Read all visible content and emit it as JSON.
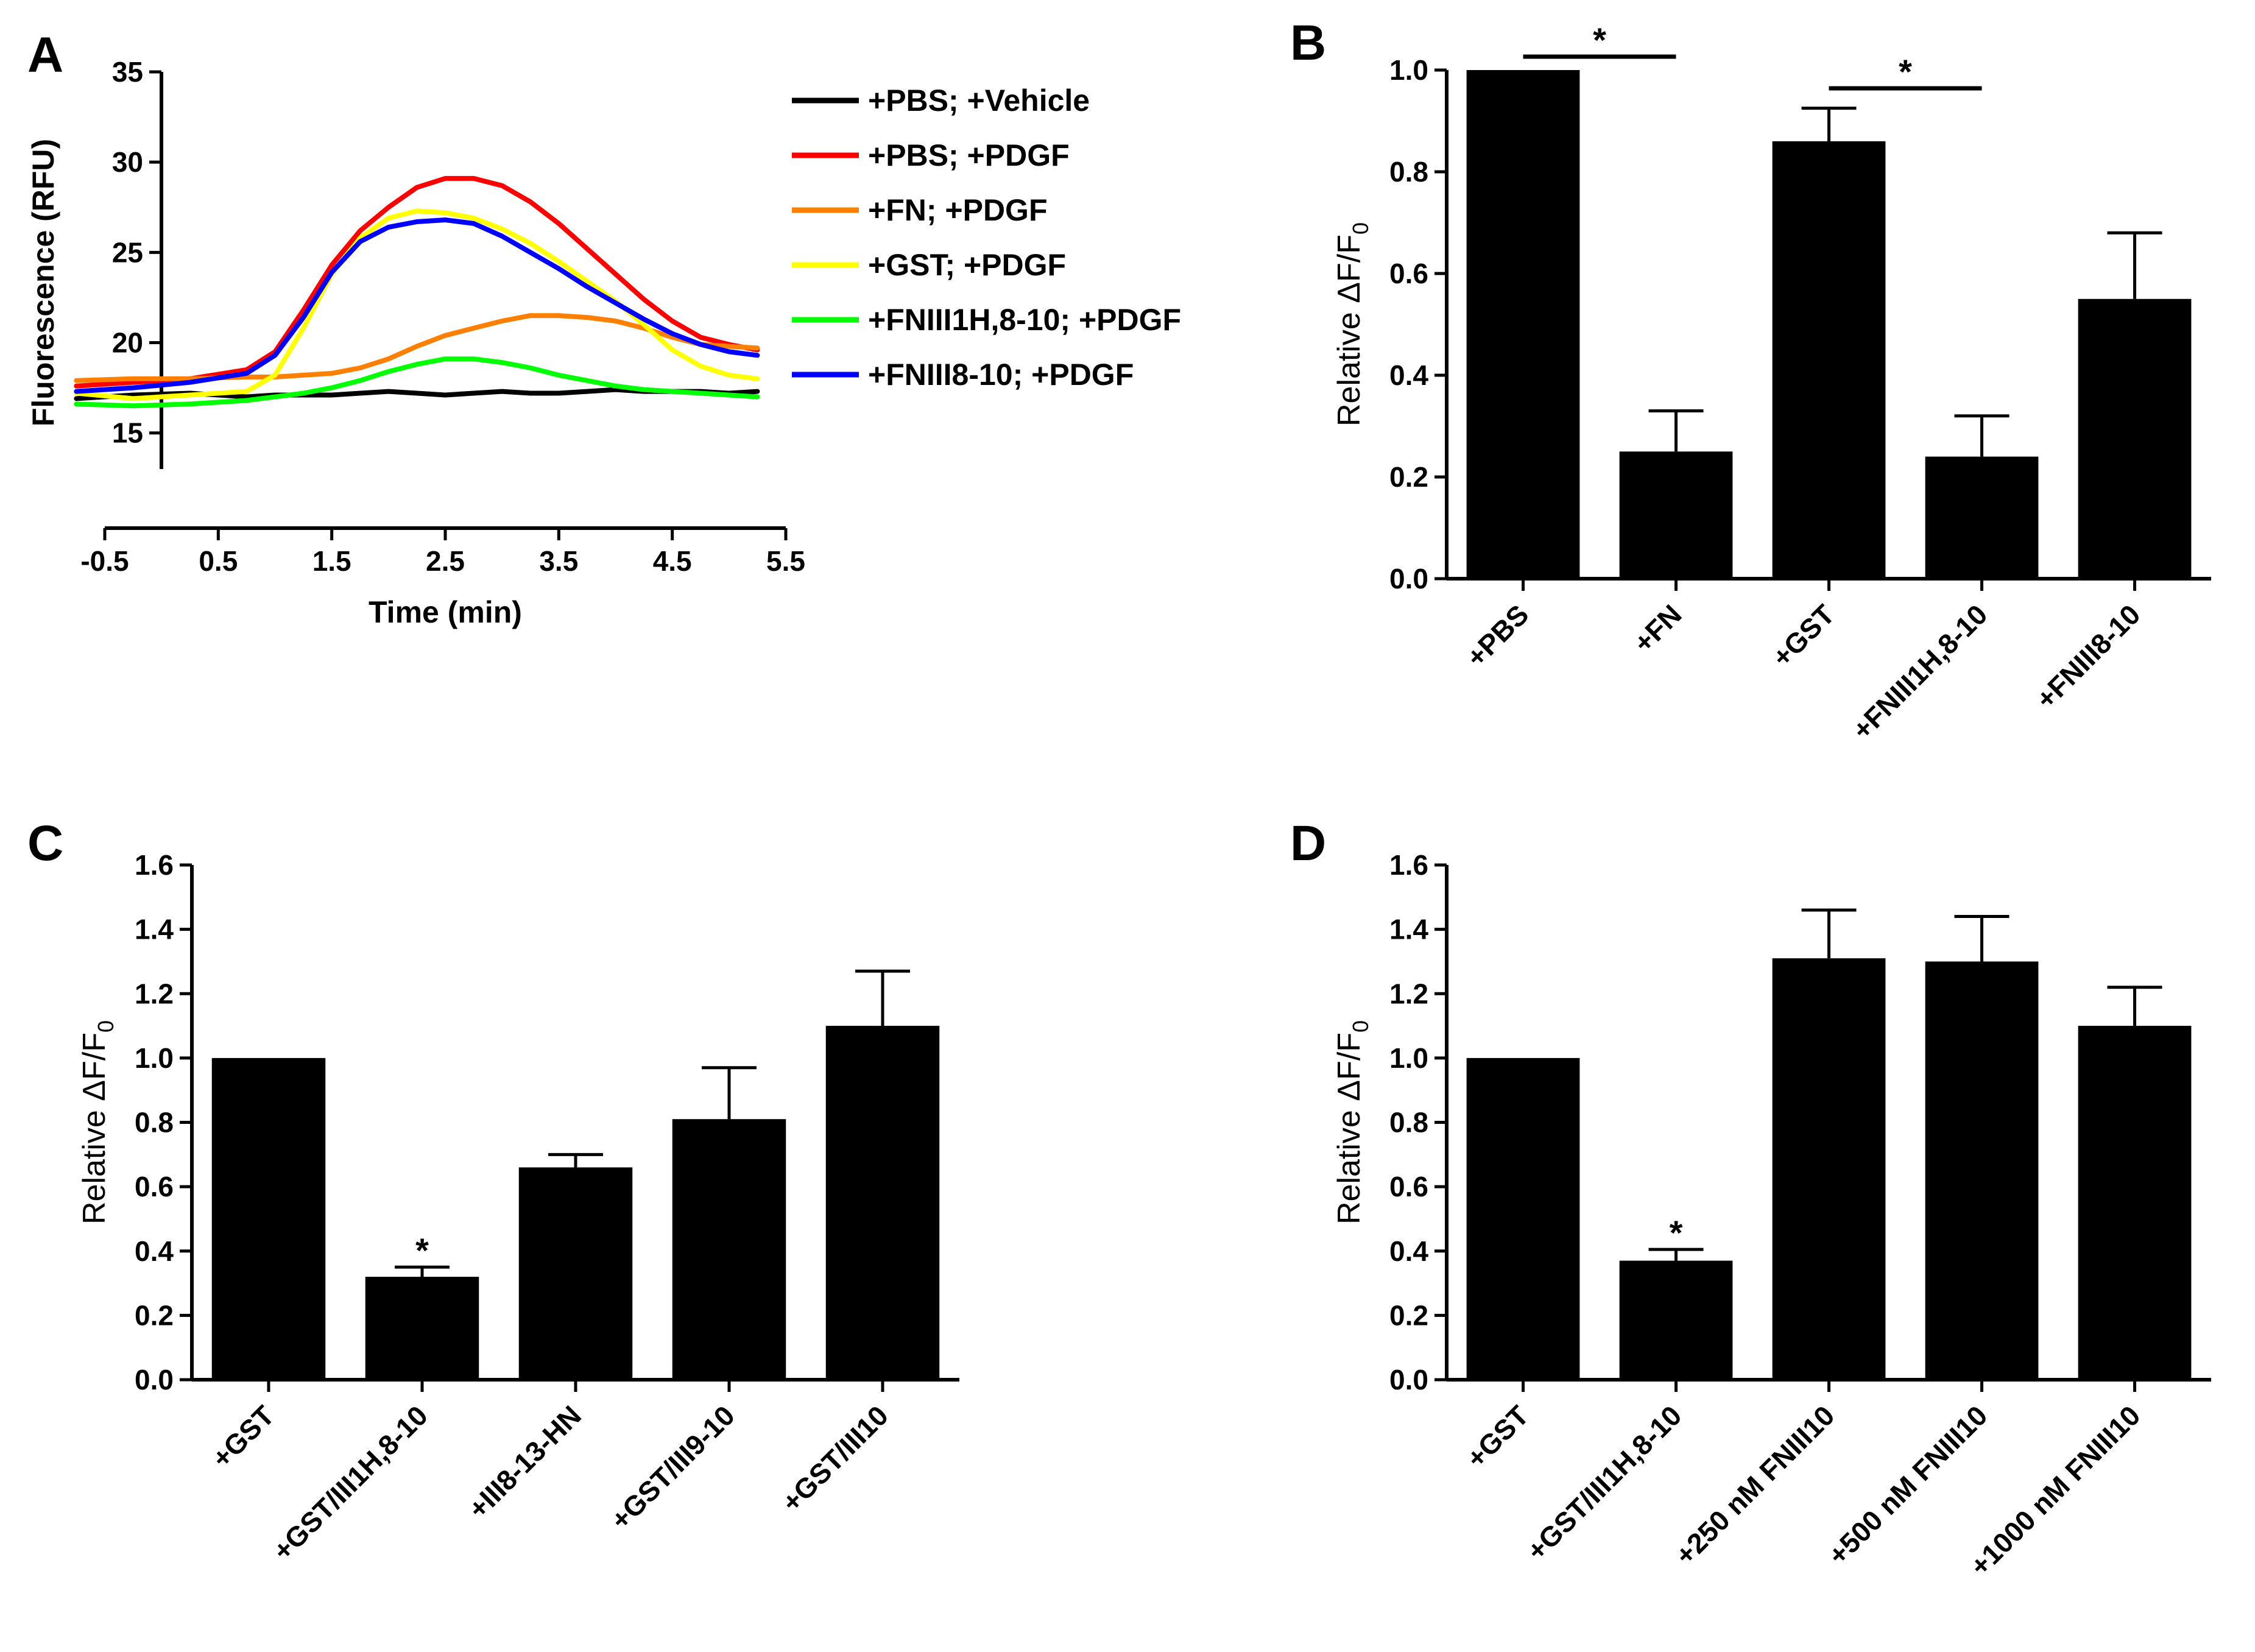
{
  "chart_data": [
    {
      "panel": "A",
      "type": "line",
      "xlabel": "Time (min)",
      "ylabel": "Fluorescence (RFU)",
      "xlim": [
        -0.5,
        5.5
      ],
      "ylim": [
        13,
        35
      ],
      "xticks": [
        "-0.5",
        "0.5",
        "1.5",
        "2.5",
        "3.5",
        "4.5",
        "5.5"
      ],
      "yticks": [
        "15",
        "20",
        "25",
        "30",
        "35"
      ],
      "x": [
        -0.75,
        -0.25,
        0.25,
        0.75,
        1.0,
        1.25,
        1.5,
        1.75,
        2.0,
        2.25,
        2.5,
        2.75,
        3.0,
        3.25,
        3.5,
        3.75,
        4.0,
        4.25,
        4.5,
        4.75,
        5.0,
        5.25
      ],
      "legend_position": "top-right",
      "series": [
        {
          "name": "+PBS; +Vehicle",
          "color": "#000000",
          "values": [
            16.9,
            17.1,
            17.2,
            17.0,
            17.1,
            17.1,
            17.1,
            17.2,
            17.3,
            17.2,
            17.1,
            17.2,
            17.3,
            17.2,
            17.2,
            17.3,
            17.4,
            17.3,
            17.3,
            17.3,
            17.2,
            17.3
          ]
        },
        {
          "name": "+PBS; +PDGF",
          "color": "#ff0000",
          "values": [
            17.6,
            17.8,
            18.0,
            18.5,
            19.5,
            21.8,
            24.3,
            26.2,
            27.5,
            28.6,
            29.1,
            29.1,
            28.7,
            27.8,
            26.6,
            25.2,
            23.8,
            22.4,
            21.2,
            20.3,
            19.9,
            19.6
          ]
        },
        {
          "name": "+FN; +PDGF",
          "color": "#ff8000",
          "values": [
            17.9,
            18.0,
            18.0,
            18.1,
            18.1,
            18.2,
            18.3,
            18.6,
            19.1,
            19.8,
            20.4,
            20.8,
            21.2,
            21.5,
            21.5,
            21.4,
            21.2,
            20.8,
            20.3,
            19.9,
            19.8,
            19.7
          ]
        },
        {
          "name": "+GST; +PDGF",
          "color": "#ffff00",
          "values": [
            17.2,
            16.9,
            17.1,
            17.3,
            18.2,
            20.8,
            23.8,
            25.8,
            26.9,
            27.3,
            27.2,
            26.9,
            26.3,
            25.5,
            24.5,
            23.4,
            22.3,
            21.0,
            19.6,
            18.7,
            18.2,
            18.0
          ]
        },
        {
          "name": "+FNIII1H,8-10; +PDGF",
          "color": "#00ff00",
          "values": [
            16.6,
            16.5,
            16.6,
            16.8,
            17.0,
            17.2,
            17.5,
            17.9,
            18.4,
            18.8,
            19.1,
            19.1,
            18.9,
            18.6,
            18.2,
            17.9,
            17.6,
            17.4,
            17.3,
            17.2,
            17.1,
            17.0
          ]
        },
        {
          "name": "+FNIII8-10; +PDGF",
          "color": "#0000ff",
          "values": [
            17.3,
            17.5,
            17.8,
            18.3,
            19.3,
            21.4,
            23.9,
            25.6,
            26.4,
            26.7,
            26.8,
            26.6,
            25.9,
            25.0,
            24.1,
            23.1,
            22.2,
            21.3,
            20.5,
            19.9,
            19.5,
            19.3
          ]
        }
      ]
    },
    {
      "panel": "B",
      "type": "bar",
      "ylabel_prefix": "Relative ΔF/F",
      "ylabel_sub": "0",
      "ylim": [
        0,
        1.0
      ],
      "yticks": [
        "0.0",
        "0.2",
        "0.4",
        "0.6",
        "0.8",
        "1.0"
      ],
      "categories": [
        "+PBS",
        "+FN",
        "+GST",
        "+FNIII1H,8-10",
        "+FNIII8-10"
      ],
      "values": [
        1.0,
        0.25,
        0.86,
        0.24,
        0.55
      ],
      "errors": [
        0.0,
        0.08,
        0.065,
        0.08,
        0.13
      ],
      "significance": [
        {
          "from": 0,
          "to": 1,
          "label": "*"
        },
        {
          "from": 2,
          "to": 3,
          "label": "*"
        }
      ]
    },
    {
      "panel": "C",
      "type": "bar",
      "ylabel_prefix": "Relative ΔF/F",
      "ylabel_sub": "0",
      "ylim": [
        0,
        1.6
      ],
      "yticks": [
        "0.0",
        "0.2",
        "0.4",
        "0.6",
        "0.8",
        "1.0",
        "1.2",
        "1.4",
        "1.6"
      ],
      "categories": [
        "+GST",
        "+GST/III1H,8-10",
        "+III8-13-HN",
        "+GST/III9-10",
        "+GST/III10"
      ],
      "values": [
        1.0,
        0.32,
        0.66,
        0.81,
        1.1
      ],
      "errors": [
        0.0,
        0.03,
        0.04,
        0.16,
        0.17
      ],
      "bar_markers": [
        "",
        "*",
        "",
        "",
        ""
      ]
    },
    {
      "panel": "D",
      "type": "bar",
      "ylabel_prefix": "Relative ΔF/F",
      "ylabel_sub": "0",
      "ylim": [
        0,
        1.6
      ],
      "yticks": [
        "0.0",
        "0.2",
        "0.4",
        "0.6",
        "0.8",
        "1.0",
        "1.2",
        "1.4",
        "1.6"
      ],
      "categories": [
        "+GST",
        "+GST/III1H,8-10",
        "+250 nM FNIII10",
        "+500 nM FNIII10",
        "+1000 nM FNIII10"
      ],
      "values": [
        1.0,
        0.37,
        1.31,
        1.3,
        1.1
      ],
      "errors": [
        0.0,
        0.035,
        0.15,
        0.14,
        0.12
      ],
      "bar_markers": [
        "",
        "*",
        "",
        "",
        ""
      ]
    }
  ]
}
